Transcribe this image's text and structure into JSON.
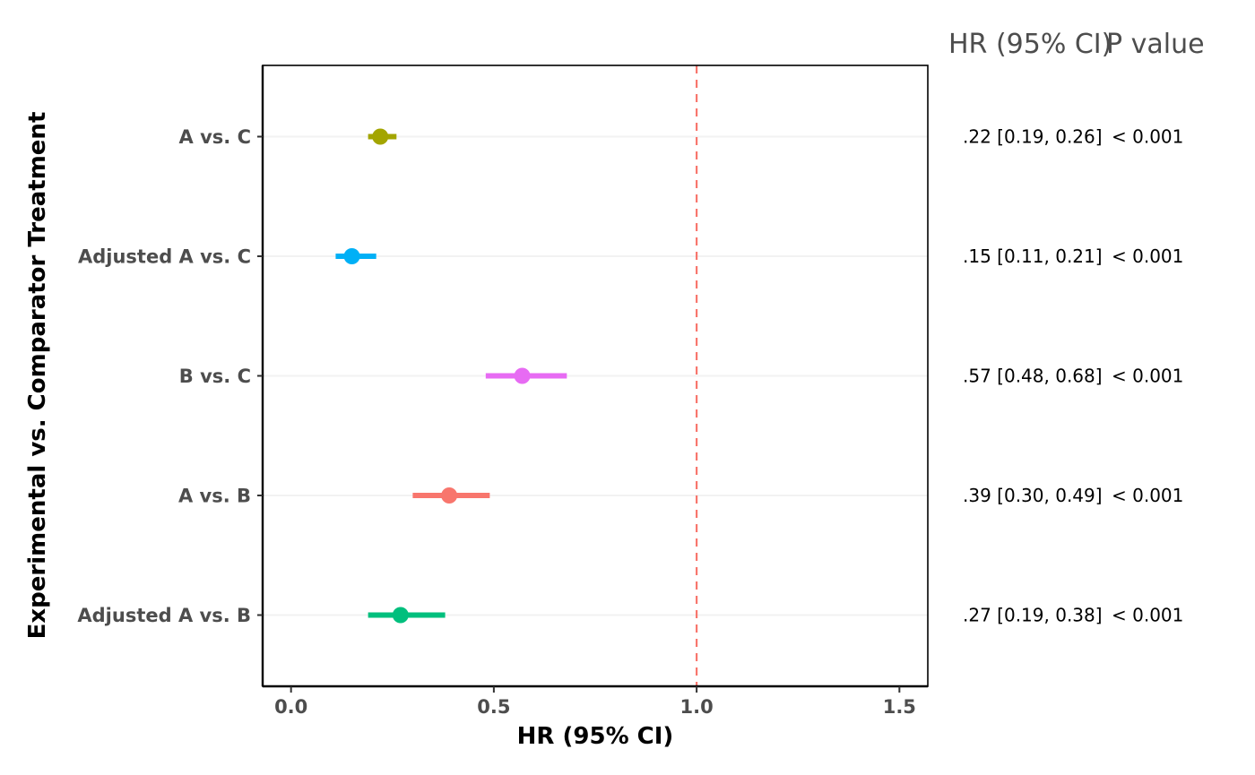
{
  "chart_data": {
    "type": "forest",
    "xlabel": "HR (95% CI)",
    "ylabel": "Experimental vs. Comparator Treatment",
    "xlim": [
      -0.07,
      1.57
    ],
    "xticks": [
      0.0,
      0.5,
      1.0,
      1.5
    ],
    "xtick_labels": [
      "0.0",
      "0.5",
      "1.0",
      "1.5"
    ],
    "reference_line": {
      "x": 1.0,
      "style": "dashed",
      "color": "#f8766d"
    },
    "grid": "horizontal-major",
    "column_headers": {
      "hr": "HR (95% CI)",
      "p": "P value"
    },
    "rows": [
      {
        "label": "A vs. C",
        "hr": 0.22,
        "lo": 0.19,
        "hi": 0.26,
        "color": "#a3a500",
        "hr_text": ".22 [0.19, 0.26]",
        "p_text": "< 0.001"
      },
      {
        "label": "Adjusted A vs. C",
        "hr": 0.15,
        "lo": 0.11,
        "hi": 0.21,
        "color": "#00b0f6",
        "hr_text": ".15 [0.11, 0.21]",
        "p_text": "< 0.001"
      },
      {
        "label": "B vs. C",
        "hr": 0.57,
        "lo": 0.48,
        "hi": 0.68,
        "color": "#e76bf3",
        "hr_text": ".57 [0.48, 0.68]",
        "p_text": "< 0.001"
      },
      {
        "label": "A vs. B",
        "hr": 0.39,
        "lo": 0.3,
        "hi": 0.49,
        "color": "#f8766d",
        "hr_text": ".39 [0.30, 0.49]",
        "p_text": "< 0.001"
      },
      {
        "label": "Adjusted A vs. B",
        "hr": 0.27,
        "lo": 0.19,
        "hi": 0.38,
        "color": "#00bf7d",
        "hr_text": ".27 [0.19, 0.38]",
        "p_text": "< 0.001"
      }
    ]
  }
}
